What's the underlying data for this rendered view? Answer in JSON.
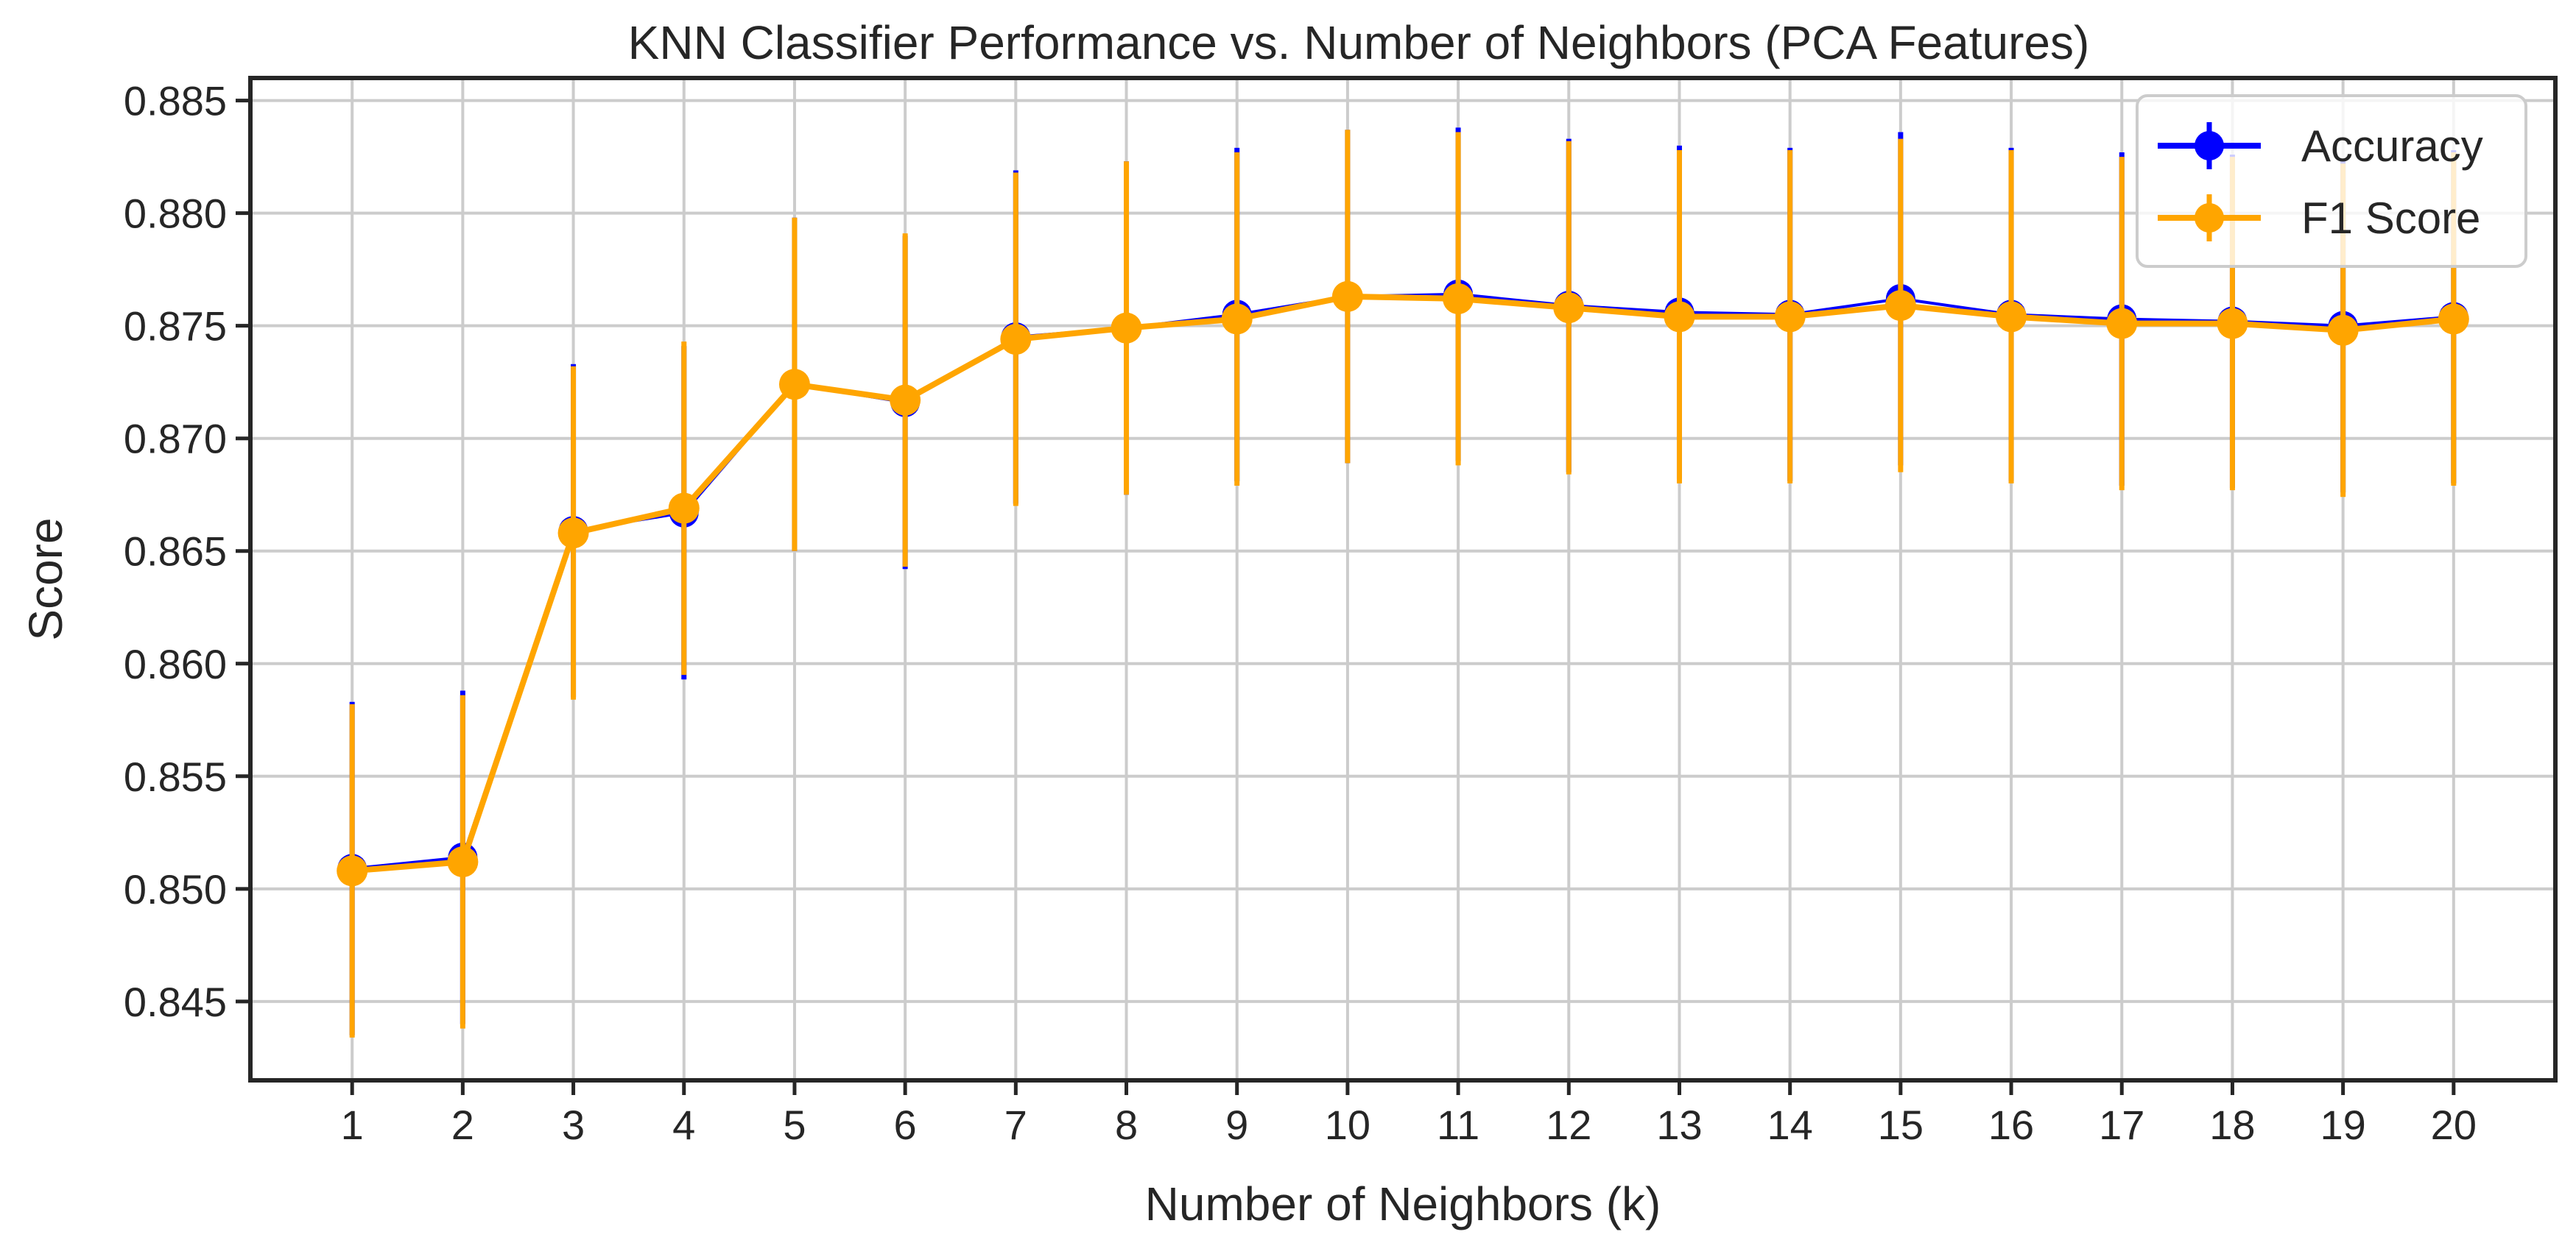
{
  "chart_data": {
    "type": "line",
    "title": "KNN Classifier Performance vs. Number of Neighbors (PCA Features)",
    "xlabel": "Number of Neighbors (k)",
    "ylabel": "Score",
    "x": [
      1,
      2,
      3,
      4,
      5,
      6,
      7,
      8,
      9,
      10,
      11,
      12,
      13,
      14,
      15,
      16,
      17,
      18,
      19,
      20
    ],
    "ylim": [
      0.8415,
      0.886
    ],
    "yticks": [
      "0.845",
      "0.850",
      "0.855",
      "0.860",
      "0.865",
      "0.870",
      "0.875",
      "0.880",
      "0.885"
    ],
    "grid": true,
    "legend_position": "top-right",
    "series": [
      {
        "name": "Accuracy",
        "color": "#0000ff",
        "values": [
          0.8509,
          0.8514,
          0.8659,
          0.8667,
          0.8724,
          0.8716,
          0.8745,
          0.8749,
          0.8755,
          0.8763,
          0.8764,
          0.8759,
          0.8756,
          0.8755,
          0.8762,
          0.8755,
          0.8753,
          0.8752,
          0.875,
          0.8754
        ],
        "errors": [
          0.0074,
          0.0074,
          0.0074,
          0.0074,
          0.0074,
          0.0074,
          0.0074,
          0.0074,
          0.0074,
          0.0074,
          0.0074,
          0.0074,
          0.0074,
          0.0074,
          0.0074,
          0.0074,
          0.0074,
          0.0074,
          0.0074,
          0.0074
        ]
      },
      {
        "name": "F1 Score",
        "color": "#ffa500",
        "values": [
          0.8508,
          0.8512,
          0.8658,
          0.8669,
          0.8724,
          0.8717,
          0.8744,
          0.8749,
          0.8753,
          0.8763,
          0.8762,
          0.8758,
          0.8754,
          0.8754,
          0.8759,
          0.8754,
          0.8751,
          0.8751,
          0.8748,
          0.8753
        ],
        "errors": [
          0.0074,
          0.0074,
          0.0074,
          0.0074,
          0.0074,
          0.0074,
          0.0074,
          0.0074,
          0.0074,
          0.0074,
          0.0074,
          0.0074,
          0.0074,
          0.0074,
          0.0074,
          0.0074,
          0.0074,
          0.0074,
          0.0074,
          0.0074
        ]
      }
    ]
  }
}
